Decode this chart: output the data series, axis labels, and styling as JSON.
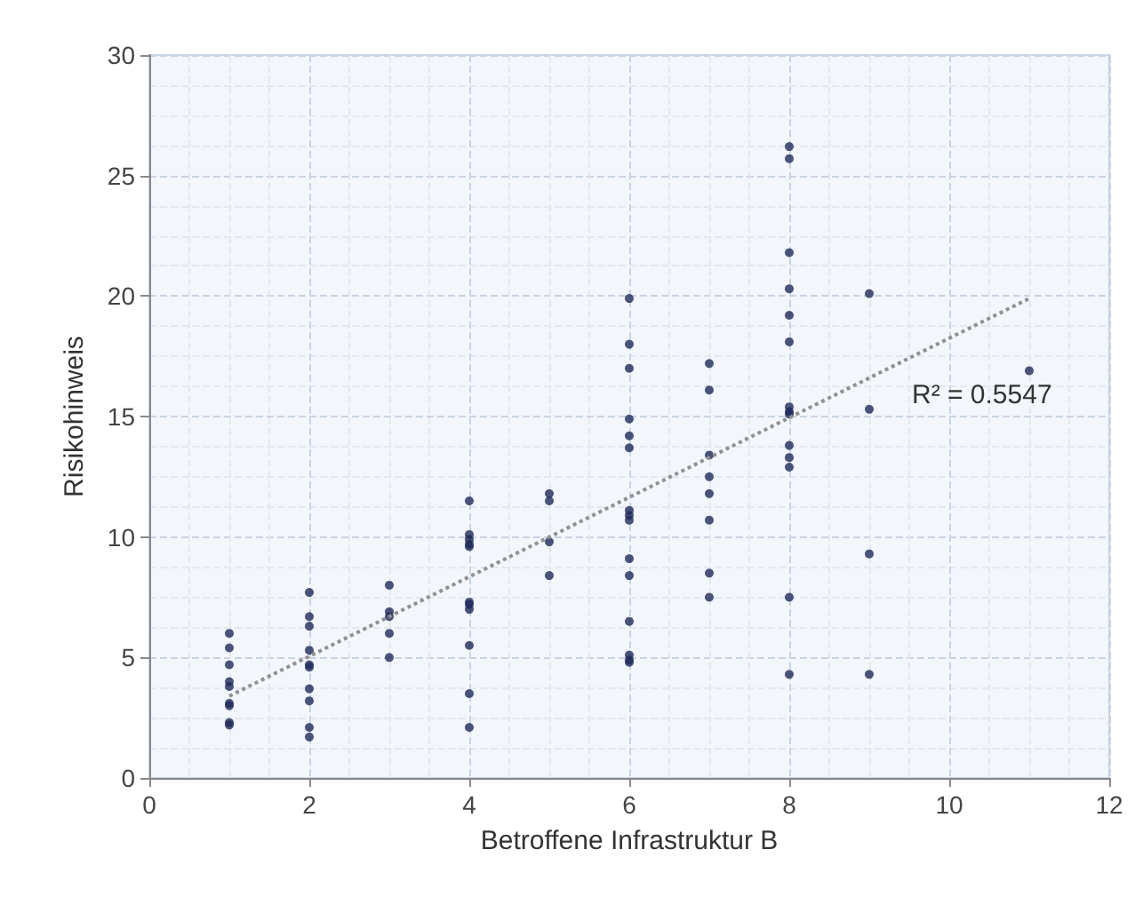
{
  "chart_data": {
    "type": "scatter",
    "xlabel": "Betroffene Infrastruktur B",
    "ylabel": "Risikohinweis",
    "xlim": [
      0,
      12
    ],
    "xticks": [
      0,
      2,
      4,
      6,
      8,
      10,
      12
    ],
    "ylim": [
      0,
      30
    ],
    "yticks": [
      0,
      5,
      10,
      15,
      20,
      25,
      30
    ],
    "grid": true,
    "marker": "circle",
    "series": [
      {
        "color": "#1f2a5a",
        "x": [
          1,
          1,
          1,
          1,
          1,
          1,
          1,
          1,
          1,
          2,
          2,
          2,
          2,
          2,
          2,
          2,
          2,
          2,
          2,
          3,
          3,
          3,
          3,
          3,
          4,
          4,
          4,
          4,
          4,
          4,
          4,
          4,
          4,
          4,
          4,
          5,
          5,
          5,
          5,
          6,
          6,
          6,
          6,
          6,
          6,
          6,
          6,
          6,
          6,
          6,
          6,
          6,
          6,
          6,
          7,
          7,
          7,
          7,
          7,
          7,
          7,
          7,
          8,
          8,
          8,
          8,
          8,
          8,
          8,
          8,
          8,
          8,
          8,
          8,
          8,
          8,
          9,
          9,
          9,
          9,
          11
        ],
        "values": [
          6.0,
          5.4,
          4.7,
          4.0,
          3.8,
          3.1,
          3.0,
          2.3,
          2.2,
          7.7,
          6.7,
          6.3,
          5.3,
          4.7,
          4.6,
          3.7,
          3.2,
          2.1,
          1.7,
          8.0,
          6.9,
          6.7,
          6.0,
          5.0,
          11.5,
          10.1,
          9.9,
          9.7,
          9.6,
          7.3,
          7.2,
          7.0,
          5.5,
          3.5,
          2.1,
          11.8,
          11.5,
          9.8,
          8.4,
          19.9,
          18.0,
          17.0,
          14.9,
          14.2,
          13.7,
          11.1,
          10.9,
          10.7,
          9.1,
          8.4,
          6.5,
          5.1,
          4.9,
          4.8,
          17.2,
          16.1,
          13.4,
          12.5,
          11.8,
          10.7,
          8.5,
          7.5,
          26.2,
          25.7,
          21.8,
          20.3,
          19.2,
          18.1,
          15.4,
          15.2,
          15.1,
          13.8,
          13.3,
          12.9,
          7.5,
          4.3,
          20.1,
          15.3,
          9.3,
          4.3,
          16.9
        ]
      },
      {
        "type": "line",
        "color": "#909090",
        "line_style": "dotted",
        "marker": "none",
        "x": [
          1,
          11
        ],
        "values": [
          3.4,
          19.9
        ]
      }
    ],
    "annotations": [
      "R² = 0.5547"
    ]
  }
}
